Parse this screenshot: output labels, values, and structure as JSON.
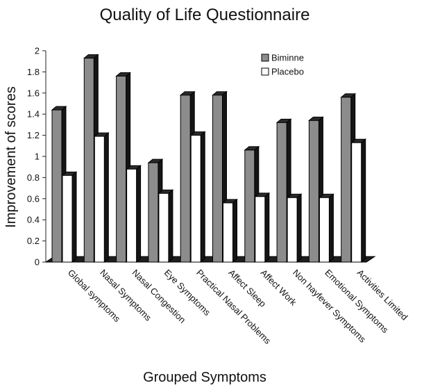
{
  "chart_data": {
    "type": "bar",
    "title": "Quality of Life Questionnaire",
    "xlabel": "Grouped Symptoms",
    "ylabel": "Improvement of scores",
    "ylim": [
      0,
      2
    ],
    "yticks": [
      "0",
      "0.2",
      "0.4",
      "0.6",
      "0.8",
      "1",
      "1.2",
      "1.4",
      "1.6",
      "1.8",
      "2"
    ],
    "categories": [
      "Global symptoms",
      "Nasal Symptoms",
      "Nasal Congestion",
      "Eye Symptoms",
      "Practical Nasal Problems",
      "Affect Sleep",
      "Affect Work",
      "Non hayfever Symptoms",
      "Emotional Symptoms",
      "Activities Limited"
    ],
    "series": [
      {
        "name": "Biminne",
        "color": "#8c8c8c",
        "values": [
          1.44,
          1.93,
          1.76,
          0.94,
          1.58,
          1.58,
          1.06,
          1.32,
          1.34,
          1.56
        ]
      },
      {
        "name": "Placebo",
        "color": "#ffffff",
        "values": [
          0.82,
          1.19,
          0.88,
          0.65,
          1.2,
          0.56,
          0.62,
          0.61,
          0.61,
          1.13
        ]
      }
    ],
    "legend": "top-right",
    "grid": false
  }
}
